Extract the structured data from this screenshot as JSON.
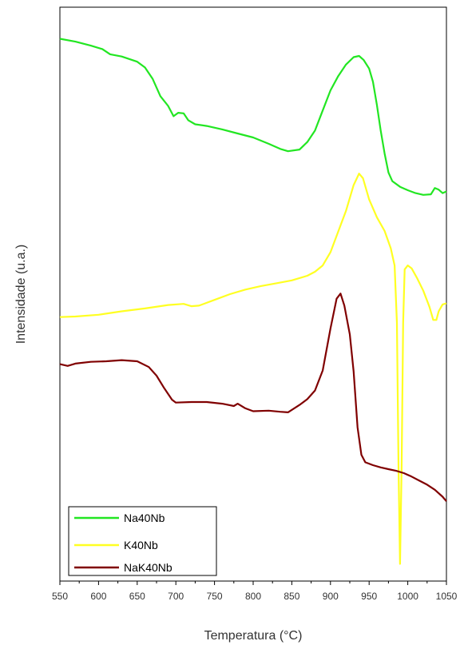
{
  "chart_data": {
    "type": "line",
    "xlabel": "Temperatura (°C)",
    "ylabel": "Intensidade (u.a.)",
    "xlim": [
      550,
      1050
    ],
    "x_ticks": [
      550,
      600,
      650,
      700,
      750,
      800,
      850,
      900,
      950,
      1000,
      1050
    ],
    "x_tick_labels": [
      "550",
      "600",
      "650",
      "700",
      "750",
      "800",
      "850",
      "900",
      "950",
      "1000",
      "1050"
    ],
    "ylim": [
      0,
      100
    ],
    "y_ticks_shown": false,
    "grid": false,
    "legend_position": "bottom-left",
    "series": [
      {
        "name": "Na40Nb",
        "color": "#22e622",
        "points": [
          [
            550,
            94.5
          ],
          [
            570,
            94.0
          ],
          [
            590,
            93.3
          ],
          [
            605,
            92.7
          ],
          [
            615,
            91.8
          ],
          [
            630,
            91.4
          ],
          [
            650,
            90.5
          ],
          [
            660,
            89.5
          ],
          [
            670,
            87.5
          ],
          [
            680,
            84.5
          ],
          [
            690,
            82.8
          ],
          [
            697,
            81.0
          ],
          [
            703,
            81.6
          ],
          [
            710,
            81.5
          ],
          [
            716,
            80.3
          ],
          [
            725,
            79.6
          ],
          [
            740,
            79.3
          ],
          [
            760,
            78.7
          ],
          [
            780,
            78.0
          ],
          [
            800,
            77.3
          ],
          [
            820,
            76.2
          ],
          [
            835,
            75.3
          ],
          [
            845,
            74.9
          ],
          [
            860,
            75.2
          ],
          [
            870,
            76.5
          ],
          [
            880,
            78.5
          ],
          [
            890,
            82.0
          ],
          [
            900,
            85.5
          ],
          [
            910,
            88.0
          ],
          [
            920,
            90.0
          ],
          [
            930,
            91.3
          ],
          [
            937,
            91.5
          ],
          [
            943,
            90.8
          ],
          [
            950,
            89.3
          ],
          [
            955,
            87.0
          ],
          [
            960,
            83.0
          ],
          [
            965,
            78.5
          ],
          [
            970,
            74.5
          ],
          [
            975,
            71.2
          ],
          [
            980,
            69.7
          ],
          [
            990,
            68.7
          ],
          [
            1000,
            68.1
          ],
          [
            1010,
            67.6
          ],
          [
            1020,
            67.3
          ],
          [
            1030,
            67.4
          ],
          [
            1035,
            68.5
          ],
          [
            1040,
            68.2
          ],
          [
            1045,
            67.6
          ],
          [
            1050,
            67.9
          ]
        ]
      },
      {
        "name": "K40Nb",
        "color": "#ffff22",
        "points": [
          [
            550,
            46.0
          ],
          [
            570,
            46.1
          ],
          [
            600,
            46.4
          ],
          [
            630,
            47.0
          ],
          [
            660,
            47.5
          ],
          [
            690,
            48.1
          ],
          [
            710,
            48.3
          ],
          [
            720,
            47.9
          ],
          [
            730,
            48.0
          ],
          [
            750,
            49.0
          ],
          [
            770,
            50.0
          ],
          [
            790,
            50.8
          ],
          [
            810,
            51.4
          ],
          [
            830,
            51.9
          ],
          [
            850,
            52.4
          ],
          [
            870,
            53.2
          ],
          [
            880,
            53.9
          ],
          [
            890,
            55.0
          ],
          [
            900,
            57.3
          ],
          [
            910,
            60.9
          ],
          [
            920,
            64.5
          ],
          [
            930,
            69.0
          ],
          [
            937,
            71.0
          ],
          [
            942,
            70.2
          ],
          [
            950,
            66.5
          ],
          [
            960,
            63.4
          ],
          [
            970,
            61.0
          ],
          [
            978,
            58.0
          ],
          [
            983,
            55.0
          ],
          [
            986,
            45.0
          ],
          [
            988,
            20.0
          ],
          [
            990,
            3.0
          ],
          [
            992,
            20.0
          ],
          [
            994,
            45.0
          ],
          [
            996,
            54.3
          ],
          [
            1000,
            55.0
          ],
          [
            1005,
            54.5
          ],
          [
            1012,
            52.8
          ],
          [
            1020,
            50.6
          ],
          [
            1028,
            47.8
          ],
          [
            1033,
            45.5
          ],
          [
            1037,
            45.5
          ],
          [
            1040,
            47.0
          ],
          [
            1045,
            48.2
          ],
          [
            1050,
            48.4
          ]
        ]
      },
      {
        "name": "NaK40Nb",
        "color": "#800000",
        "points": [
          [
            550,
            37.8
          ],
          [
            560,
            37.5
          ],
          [
            570,
            37.9
          ],
          [
            590,
            38.2
          ],
          [
            610,
            38.3
          ],
          [
            630,
            38.5
          ],
          [
            650,
            38.3
          ],
          [
            665,
            37.3
          ],
          [
            675,
            35.8
          ],
          [
            685,
            33.6
          ],
          [
            695,
            31.6
          ],
          [
            700,
            31.1
          ],
          [
            720,
            31.2
          ],
          [
            740,
            31.2
          ],
          [
            760,
            30.9
          ],
          [
            775,
            30.5
          ],
          [
            780,
            30.9
          ],
          [
            790,
            30.1
          ],
          [
            800,
            29.6
          ],
          [
            820,
            29.7
          ],
          [
            835,
            29.5
          ],
          [
            845,
            29.4
          ],
          [
            860,
            30.7
          ],
          [
            870,
            31.7
          ],
          [
            880,
            33.2
          ],
          [
            890,
            36.7
          ],
          [
            900,
            44.0
          ],
          [
            908,
            49.2
          ],
          [
            913,
            50.1
          ],
          [
            918,
            48.0
          ],
          [
            925,
            43.0
          ],
          [
            930,
            36.5
          ],
          [
            935,
            26.8
          ],
          [
            940,
            22.0
          ],
          [
            945,
            20.7
          ],
          [
            955,
            20.2
          ],
          [
            965,
            19.8
          ],
          [
            975,
            19.5
          ],
          [
            985,
            19.2
          ],
          [
            995,
            18.8
          ],
          [
            1005,
            18.2
          ],
          [
            1015,
            17.5
          ],
          [
            1025,
            16.8
          ],
          [
            1035,
            15.9
          ],
          [
            1045,
            14.7
          ],
          [
            1050,
            13.9
          ]
        ]
      }
    ]
  }
}
